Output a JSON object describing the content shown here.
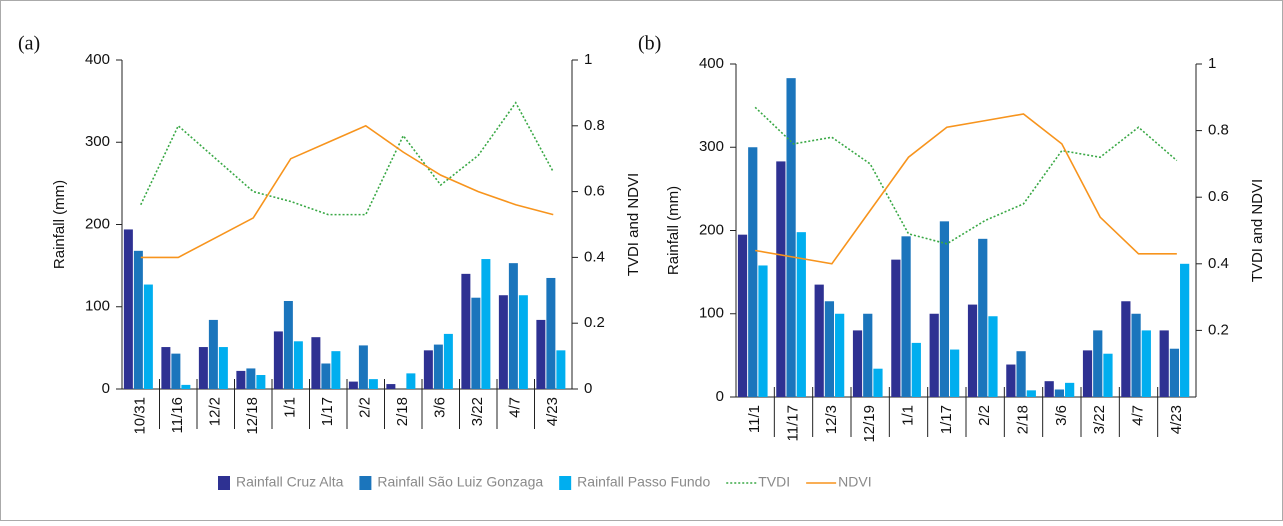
{
  "chart_data": [
    {
      "type": "bar",
      "label": "(a)",
      "ylabel": "Rainfall (mm)",
      "y2label": "TVDI and NDVI",
      "categories": [
        "10/31",
        "11/16",
        "12/2",
        "12/18",
        "1/1",
        "1/17",
        "2/2",
        "2/18",
        "3/6",
        "3/22",
        "4/7",
        "4/23"
      ],
      "ylim": [
        0,
        400
      ],
      "yticks": [
        0,
        100,
        200,
        300,
        400
      ],
      "y2lim": [
        0,
        1
      ],
      "y2ticks": [
        0,
        0.2,
        0.4,
        0.6,
        0.8,
        1
      ],
      "series": [
        {
          "name": "Rainfall Cruz Alta",
          "color": "#2e3192",
          "type": "bar",
          "values": [
            194,
            51,
            51,
            22,
            70,
            63,
            9,
            6,
            47,
            140,
            114,
            84
          ]
        },
        {
          "name": "Rainfall São Luiz Gonzaga",
          "color": "#1b75bc",
          "type": "bar",
          "values": [
            168,
            43,
            84,
            25,
            107,
            31,
            53,
            0,
            54,
            111,
            153,
            135
          ]
        },
        {
          "name": "Rainfall Passo Fundo",
          "color": "#00aeef",
          "type": "bar",
          "values": [
            127,
            5,
            51,
            17,
            58,
            46,
            12,
            19,
            67,
            158,
            114,
            47
          ]
        },
        {
          "name": "TVDI",
          "color": "#39a845",
          "type": "line",
          "dash": true,
          "axis": "y2",
          "values": [
            0.56,
            0.8,
            0.7,
            0.6,
            0.57,
            0.53,
            0.53,
            0.77,
            0.62,
            0.71,
            0.87,
            0.66
          ]
        },
        {
          "name": "NDVI",
          "color": "#f7941d",
          "type": "line",
          "axis": "y2",
          "values": [
            0.4,
            0.4,
            0.46,
            0.52,
            0.7,
            0.75,
            0.8,
            0.72,
            0.65,
            0.6,
            0.56,
            0.53
          ]
        }
      ]
    },
    {
      "type": "bar",
      "label": "(b)",
      "ylabel": "Rainfall (mm)",
      "y2label": "TVDI and NDVI",
      "categories": [
        "11/1",
        "11/17",
        "12/3",
        "12/19",
        "1/1",
        "1/17",
        "2/2",
        "2/18",
        "3/6",
        "3/22",
        "4/7",
        "4/23"
      ],
      "ylim": [
        0,
        400
      ],
      "yticks": [
        0,
        100,
        200,
        300,
        400
      ],
      "y2lim": [
        0,
        1
      ],
      "y2ticks": [
        0.2,
        0.4,
        0.6,
        0.8,
        1
      ],
      "series": [
        {
          "name": "Rainfall Cruz Alta",
          "color": "#2e3192",
          "type": "bar",
          "values": [
            195,
            283,
            135,
            80,
            165,
            100,
            111,
            39,
            19,
            56,
            115,
            80
          ]
        },
        {
          "name": "Rainfall São Luiz Gonzaga",
          "color": "#1b75bc",
          "type": "bar",
          "values": [
            300,
            383,
            115,
            100,
            193,
            211,
            190,
            55,
            9,
            80,
            100,
            58
          ]
        },
        {
          "name": "Rainfall Passo Fundo",
          "color": "#00aeef",
          "type": "bar",
          "values": [
            158,
            198,
            100,
            34,
            65,
            57,
            97,
            8,
            17,
            52,
            80,
            160
          ]
        },
        {
          "name": "TVDI",
          "color": "#39a845",
          "type": "line",
          "dash": true,
          "axis": "y2",
          "values": [
            0.87,
            0.76,
            0.78,
            0.7,
            0.49,
            0.46,
            0.53,
            0.58,
            0.74,
            0.72,
            0.81,
            0.71
          ]
        },
        {
          "name": "NDVI",
          "color": "#f7941d",
          "type": "line",
          "axis": "y2",
          "values": [
            0.44,
            0.42,
            0.4,
            0.56,
            0.72,
            0.81,
            0.83,
            0.85,
            0.76,
            0.54,
            0.43,
            0.43
          ]
        }
      ]
    }
  ]
}
